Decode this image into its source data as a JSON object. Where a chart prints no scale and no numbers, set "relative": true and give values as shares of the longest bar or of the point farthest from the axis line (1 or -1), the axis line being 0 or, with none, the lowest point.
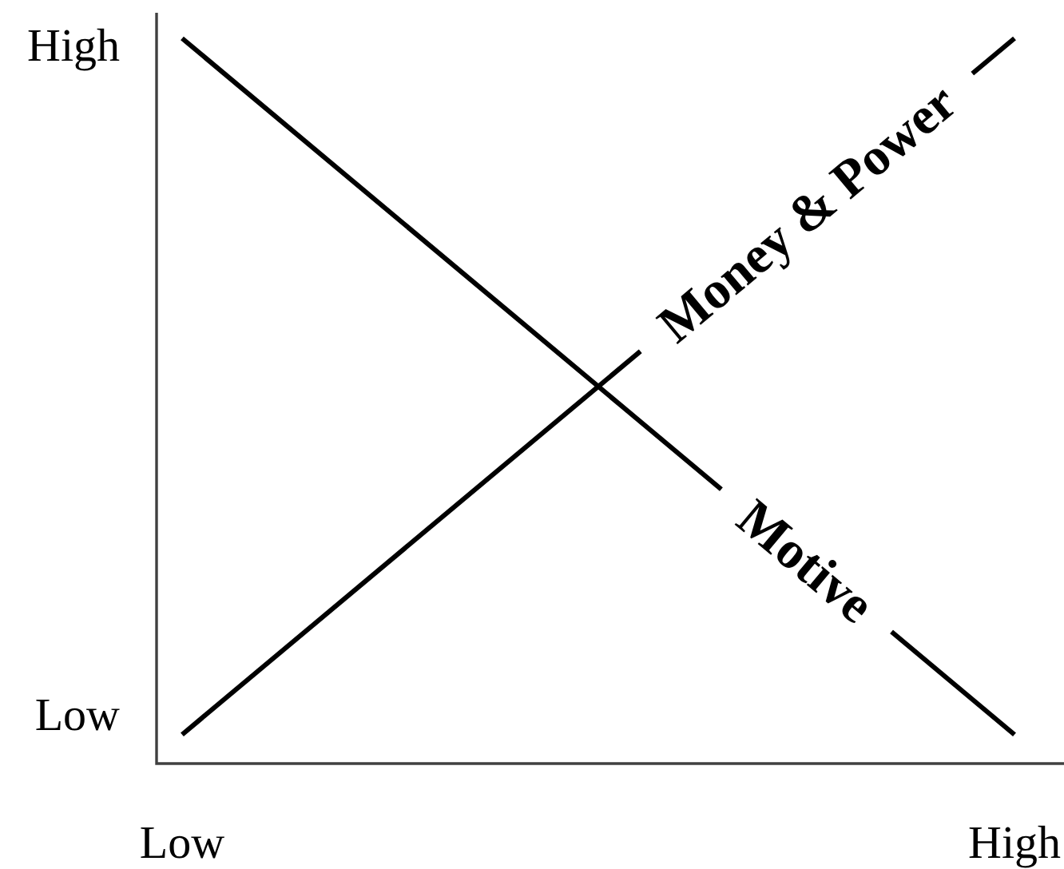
{
  "chart_data": {
    "type": "line",
    "relative": true,
    "categories": [
      "Low",
      "High"
    ],
    "annotations": [
      "High",
      "Low"
    ],
    "series": [
      {
        "name": "Money & Power",
        "color": "#000000",
        "values": [
          0.04,
          1
        ]
      },
      {
        "name": "Motive",
        "color": "#000000",
        "values": [
          1,
          0.04
        ]
      }
    ]
  }
}
